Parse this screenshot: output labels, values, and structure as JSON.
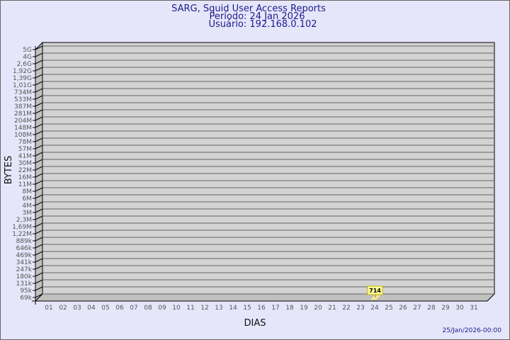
{
  "chart_data": {
    "type": "bar",
    "title": "SARG, Squid User Access Reports",
    "subtitle_lines": [
      "Período: 24 Jan 2026",
      "Usuário: 192.168.0.102"
    ],
    "xlabel": "DIAS",
    "ylabel": "BYTES",
    "categories": [
      "01",
      "02",
      "03",
      "04",
      "05",
      "06",
      "07",
      "08",
      "09",
      "10",
      "11",
      "12",
      "13",
      "14",
      "15",
      "16",
      "17",
      "18",
      "19",
      "20",
      "21",
      "22",
      "23",
      "24",
      "25",
      "26",
      "27",
      "28",
      "29",
      "30",
      "31"
    ],
    "y_ticks": [
      "5G",
      "4G",
      "2,6G",
      "1,92G",
      "1,39G",
      "1,01G",
      "734M",
      "533M",
      "387M",
      "281M",
      "204M",
      "148M",
      "108M",
      "78M",
      "57M",
      "41M",
      "30M",
      "22M",
      "16M",
      "11M",
      "8M",
      "6M",
      "4M",
      "3M",
      "2,3M",
      "1,69M",
      "1,22M",
      "889k",
      "646k",
      "469k",
      "341k",
      "247k",
      "180k",
      "131k",
      "95k",
      "69k"
    ],
    "series": [
      {
        "values": [
          {
            "x": "24",
            "y": 714,
            "label": "714"
          }
        ]
      }
    ],
    "grid": true,
    "colors": {
      "background": "#e6e6fa",
      "plot": "#d3d3d3",
      "bar": "#ffe68c",
      "label_bg": "#ffff99",
      "title": "#1a1a8c"
    }
  },
  "footer": {
    "timestamp": "25/Jan/2026-00:00"
  }
}
